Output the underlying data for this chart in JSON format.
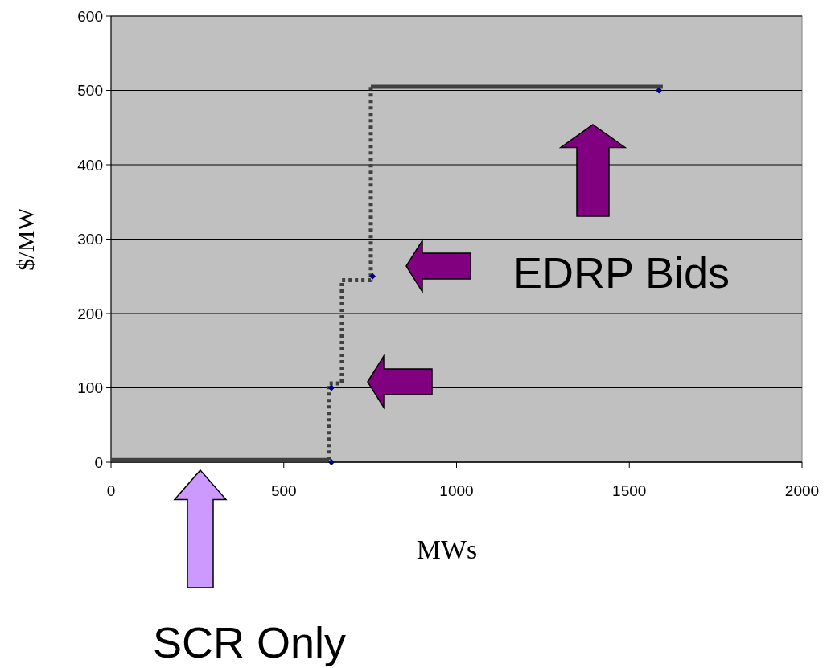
{
  "chart_data": {
    "type": "line",
    "xlabel": "MWs",
    "ylabel": "$/MW",
    "xlim": [
      0,
      2000
    ],
    "ylim": [
      0,
      600
    ],
    "xticks": [
      0,
      500,
      1000,
      1500,
      2000
    ],
    "yticks": [
      0,
      100,
      200,
      300,
      400,
      500,
      600
    ],
    "grid": "y",
    "annotations": [
      "EDRP Bids",
      "SCR Only"
    ],
    "series": [
      {
        "color": "#404040",
        "line_style": "solid",
        "marker": "none",
        "x": [
          0,
          631
        ],
        "values": [
          3,
          3
        ]
      },
      {
        "color": "#404040",
        "line_style": "dotted",
        "marker": "none",
        "x": [
          631,
          631,
          668,
          668,
          752,
          752
        ],
        "values": [
          3,
          106,
          106,
          245,
          245,
          505
        ]
      },
      {
        "color": "#404040",
        "line_style": "solid",
        "marker": "none",
        "x": [
          752,
          1597
        ],
        "values": [
          505,
          505
        ]
      },
      {
        "type": "scatter",
        "color": "#000080",
        "marker": "diamond",
        "x": [
          638,
          638,
          757,
          1586
        ],
        "values": [
          0,
          100,
          250,
          500
        ]
      }
    ]
  }
}
